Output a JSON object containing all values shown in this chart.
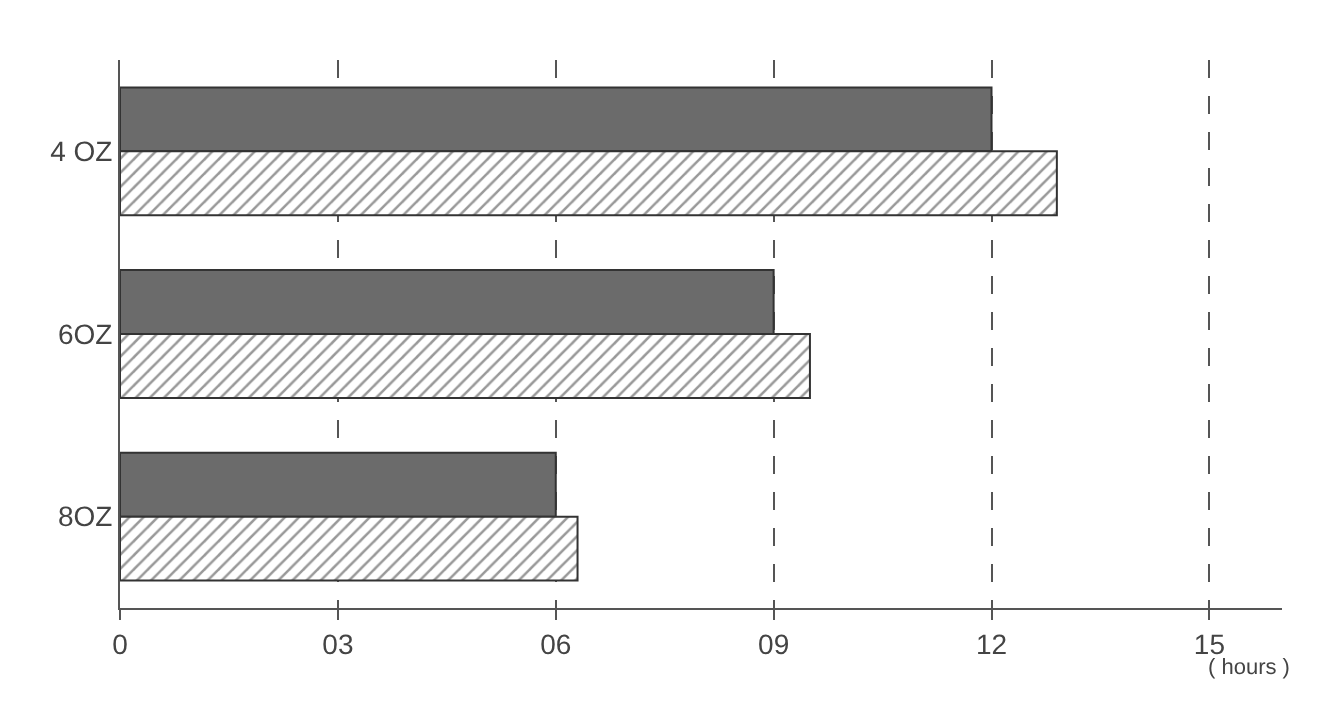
{
  "chart_data": {
    "type": "bar",
    "orientation": "horizontal",
    "xlabel": "( hours )",
    "categories": [
      "4 OZ",
      "6OZ",
      "8OZ"
    ],
    "series": [
      {
        "color": "#6b6b6b",
        "values": [
          12.0,
          9.0,
          6.0
        ]
      },
      {
        "color": "#333333",
        "values": [
          12.9,
          9.5,
          6.3
        ]
      }
    ],
    "xlim": [
      0,
      16
    ],
    "xticks": [
      0,
      {
        "value": 3,
        "label": "03"
      },
      {
        "value": 6,
        "label": "06"
      },
      {
        "value": 9,
        "label": "09"
      },
      12,
      15
    ],
    "grid": "x"
  }
}
